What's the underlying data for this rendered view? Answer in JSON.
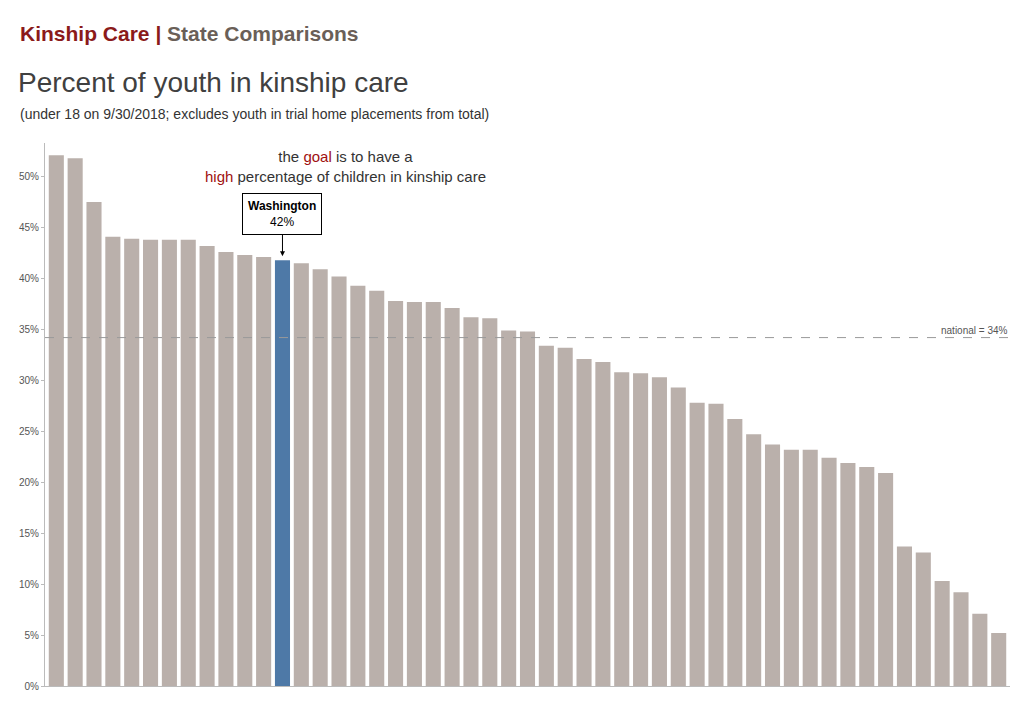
{
  "chart_data": {
    "type": "bar",
    "header": [
      "Kinship Care",
      "|",
      "State Comparisons"
    ],
    "title": "Percent of youth in kinship care",
    "subtitle": "(under 18 on 9/30/2018; excludes youth in trial home placements from total)",
    "note_lines": [
      "the goal is to have a",
      "high percentage of children in kinship care"
    ],
    "note_highlights": [
      "goal",
      "high"
    ],
    "highlight": {
      "category": "Washington",
      "label": "42%"
    },
    "reference_line": {
      "value": 34.2,
      "label": "national = 34%"
    },
    "categories": [
      null,
      null,
      null,
      null,
      null,
      null,
      null,
      null,
      null,
      null,
      null,
      null,
      "Washington",
      null,
      null,
      null,
      null,
      null,
      null,
      null,
      null,
      null,
      null,
      null,
      null,
      null,
      null,
      null,
      null,
      null,
      null,
      null,
      null,
      null,
      null,
      null,
      null,
      null,
      null,
      null,
      null,
      null,
      null,
      null,
      null,
      null,
      null,
      null,
      null,
      null,
      null
    ],
    "values": [
      52.1,
      51.8,
      47.5,
      44.1,
      43.9,
      43.8,
      43.8,
      43.8,
      43.2,
      42.6,
      42.3,
      42.1,
      41.8,
      41.5,
      40.9,
      40.2,
      39.3,
      38.8,
      37.8,
      37.7,
      37.7,
      37.1,
      36.2,
      36.1,
      34.9,
      34.8,
      33.4,
      33.2,
      32.1,
      31.8,
      30.8,
      30.7,
      30.3,
      29.3,
      27.8,
      27.7,
      26.2,
      24.7,
      23.7,
      23.2,
      23.2,
      22.4,
      21.9,
      21.5,
      20.9,
      13.7,
      13.1,
      10.3,
      9.2,
      7.1,
      5.2
    ],
    "colors": [
      "#bab0ab",
      "#bab0ab",
      "#bab0ab",
      "#bab0ab",
      "#bab0ab",
      "#bab0ab",
      "#bab0ab",
      "#bab0ab",
      "#bab0ab",
      "#bab0ab",
      "#bab0ab",
      "#bab0ab",
      "#4e79a7",
      "#bab0ab",
      "#bab0ab",
      "#bab0ab",
      "#bab0ab",
      "#bab0ab",
      "#bab0ab",
      "#bab0ab",
      "#bab0ab",
      "#bab0ab",
      "#bab0ab",
      "#bab0ab",
      "#bab0ab",
      "#bab0ab",
      "#bab0ab",
      "#bab0ab",
      "#bab0ab",
      "#bab0ab",
      "#bab0ab",
      "#bab0ab",
      "#bab0ab",
      "#bab0ab",
      "#bab0ab",
      "#bab0ab",
      "#bab0ab",
      "#bab0ab",
      "#bab0ab",
      "#bab0ab",
      "#bab0ab",
      "#bab0ab",
      "#bab0ab",
      "#bab0ab",
      "#bab0ab",
      "#bab0ab",
      "#bab0ab",
      "#bab0ab",
      "#bab0ab",
      "#bab0ab",
      "#bab0ab"
    ],
    "ylim": [
      0,
      53.3
    ],
    "yticks": [
      {
        "value": 0,
        "label": "0%"
      },
      {
        "value": 5,
        "label": "5%"
      },
      {
        "value": 10,
        "label": "10%"
      },
      {
        "value": 15,
        "label": "15%"
      },
      {
        "value": 20,
        "label": "20%"
      },
      {
        "value": 25,
        "label": "25%"
      },
      {
        "value": 30,
        "label": "30%"
      },
      {
        "value": 35,
        "label": "35%"
      },
      {
        "value": 40,
        "label": "40%"
      },
      {
        "value": 45,
        "label": "45%"
      },
      {
        "value": 50,
        "label": "50%"
      }
    ],
    "grid": false,
    "tick_labels": "y"
  }
}
